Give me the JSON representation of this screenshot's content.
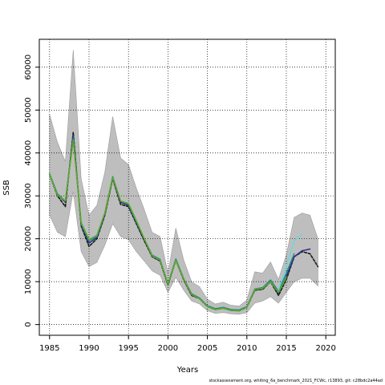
{
  "chart_data": {
    "type": "line",
    "xlabel": "Years",
    "ylabel": "SSB",
    "xlim": [
      1983.7,
      2021.2
    ],
    "ylim": [
      -2500,
      66500
    ],
    "x_ticks": [
      1985,
      1990,
      1995,
      2000,
      2005,
      2010,
      2015,
      2020
    ],
    "y_ticks": [
      0,
      10000,
      20000,
      30000,
      40000,
      50000,
      60000
    ],
    "grid": true,
    "grid_style": "dotted",
    "footer": "stockassessment.org, whiting_6a_benchmark_2021_FCWc, r13893, git: c28bdc2a44ad",
    "band": {
      "color": "#bebebe",
      "x": [
        1985,
        1986,
        1987,
        1988,
        1989,
        1990,
        1991,
        1992,
        1993,
        1994,
        1995,
        1996,
        1997,
        1998,
        1999,
        2000,
        2001,
        2002,
        2003,
        2004,
        2005,
        2006,
        2007,
        2008,
        2009,
        2010,
        2011,
        2012,
        2013,
        2014,
        2015,
        2016,
        2017,
        2018,
        2019
      ],
      "lower": [
        25500,
        21500,
        20500,
        31000,
        17000,
        13500,
        14500,
        18500,
        23500,
        20500,
        19800,
        17000,
        14800,
        12500,
        11500,
        7500,
        11000,
        8000,
        5500,
        4800,
        3200,
        2600,
        2800,
        2500,
        2400,
        2800,
        5000,
        5500,
        6500,
        5000,
        7500,
        10000,
        10800,
        10800,
        9000
      ],
      "upper": [
        49000,
        42500,
        38000,
        64000,
        34000,
        25500,
        27800,
        35500,
        48500,
        38800,
        37300,
        31800,
        26800,
        21500,
        20500,
        12000,
        22500,
        15000,
        10000,
        8800,
        5900,
        4800,
        5200,
        4500,
        4300,
        5700,
        12300,
        12000,
        14600,
        10500,
        16300,
        25000,
        26000,
        25500,
        20000
      ]
    },
    "series": [
      {
        "color": "#1a1a1a",
        "dashed": true,
        "width": 1.6,
        "x": [
          1985,
          1986,
          1987,
          1988,
          1989,
          1990,
          1991,
          1992,
          1993,
          1994,
          1995,
          1996,
          1997,
          1998,
          1999,
          2000,
          2001,
          2002,
          2003,
          2004,
          2005,
          2006,
          2007,
          2008,
          2009,
          2010,
          2011,
          2012,
          2013,
          2014,
          2015,
          2016,
          2017,
          2018,
          2019
        ],
        "values": [
          35000,
          30000,
          27500,
          44800,
          23000,
          18200,
          20000,
          25500,
          34000,
          28000,
          27500,
          23500,
          19500,
          15800,
          14800,
          9200,
          15000,
          10400,
          6800,
          6000,
          4200,
          3500,
          3800,
          3300,
          3200,
          4000,
          8000,
          8200,
          10000,
          6800,
          10500,
          15800,
          17000,
          16500,
          13500
        ]
      },
      {
        "color": "#2b2f86",
        "dashed": false,
        "width": 1.5,
        "x": [
          1985,
          1986,
          1987,
          1988,
          1989,
          1990,
          1991,
          1992,
          1993,
          1994,
          1995,
          1996,
          1997,
          1998,
          1999,
          2000,
          2001,
          2002,
          2003,
          2004,
          2005,
          2006,
          2007,
          2008,
          2009,
          2010,
          2011,
          2012,
          2013,
          2014,
          2015,
          2016,
          2017,
          2018
        ],
        "values": [
          35000,
          30300,
          28500,
          44000,
          23300,
          19000,
          20300,
          25800,
          34200,
          28500,
          27800,
          23800,
          19800,
          16000,
          15000,
          9300,
          15200,
          10500,
          7000,
          6100,
          4300,
          3600,
          3900,
          3400,
          3300,
          4100,
          8100,
          8400,
          10200,
          7300,
          11200,
          15800,
          17200,
          17600
        ]
      },
      {
        "color": "#1d8a8a",
        "dashed": false,
        "width": 1.4,
        "x": [
          1985,
          1986,
          1987,
          1988,
          1989,
          1990,
          1991,
          1992,
          1993,
          1994,
          1995,
          1996,
          1997,
          1998,
          1999,
          2000,
          2001,
          2002,
          2003,
          2004,
          2005,
          2006,
          2007,
          2008,
          2009,
          2010,
          2011,
          2012,
          2013,
          2014,
          2015,
          2016
        ],
        "values": [
          35200,
          30500,
          28800,
          43500,
          23500,
          19500,
          20500,
          26000,
          34500,
          28800,
          28000,
          24000,
          20000,
          16200,
          15200,
          9500,
          15300,
          10700,
          7200,
          6200,
          4400,
          3700,
          4000,
          3500,
          3400,
          4200,
          8300,
          8600,
          10400,
          7800,
          12000,
          16500
        ]
      },
      {
        "color": "#5ddbe0",
        "dashed": false,
        "width": 1.2,
        "x": [
          2014,
          2015,
          2016,
          2017
        ],
        "values": [
          8000,
          13500,
          19500,
          21000
        ]
      },
      {
        "color": "#5ea82a",
        "dashed": false,
        "width": 1.6,
        "x": [
          1985,
          1986,
          1987,
          1988,
          1989,
          1990,
          1991,
          1992,
          1993,
          1994,
          1995,
          1996,
          1997,
          1998,
          1999,
          2000,
          2001,
          2002,
          2003,
          2004,
          2005,
          2006,
          2007,
          2008,
          2009,
          2010,
          2011,
          2012,
          2013,
          2014,
          2015
        ],
        "values": [
          35000,
          30200,
          28800,
          43000,
          23800,
          19800,
          20800,
          26000,
          34200,
          28800,
          28200,
          24200,
          20000,
          16000,
          15000,
          9400,
          15000,
          10600,
          7000,
          6000,
          4200,
          3500,
          3800,
          3300,
          3200,
          4000,
          8200,
          8400,
          10000,
          7500,
          11000
        ]
      }
    ]
  }
}
